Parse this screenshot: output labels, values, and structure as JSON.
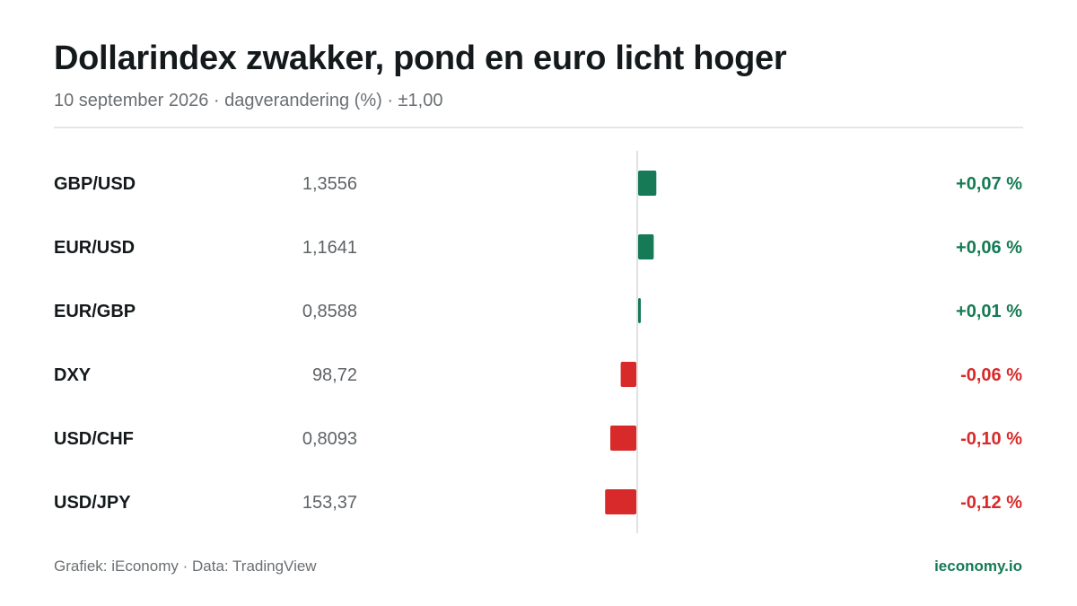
{
  "header": {
    "title": "Dollarindex zwakker, pond en euro licht hoger",
    "subtitle": "10 september 2026 · dagverandering (%) · ±1,00"
  },
  "footer": {
    "source": "Grafiek: iEconomy · Data: TradingView",
    "brand": "ieconomy.io"
  },
  "colors": {
    "positive": "#157a55",
    "negative": "#d82a2a",
    "zero_line": "#d6d8d9",
    "label": "#141a1c",
    "value": "#5f6366"
  },
  "chart_data": {
    "type": "bar",
    "orientation": "horizontal",
    "categories": [
      "GBP/USD",
      "EUR/USD",
      "EUR/GBP",
      "DXY",
      "USD/CHF",
      "USD/JPY"
    ],
    "levels": [
      "1,3556",
      "1,1641",
      "0,8588",
      "98,72",
      "0,8093",
      "153,37"
    ],
    "values": [
      0.07,
      0.06,
      0.01,
      -0.06,
      -0.1,
      -0.12
    ],
    "value_labels": [
      "+0,07 %",
      "+0,06 %",
      "+0,01 %",
      "-0,06 %",
      "-0,10 %",
      "-0,12 %"
    ],
    "xlim": [
      -1.0,
      1.0
    ],
    "grid": false,
    "legend": "none"
  }
}
